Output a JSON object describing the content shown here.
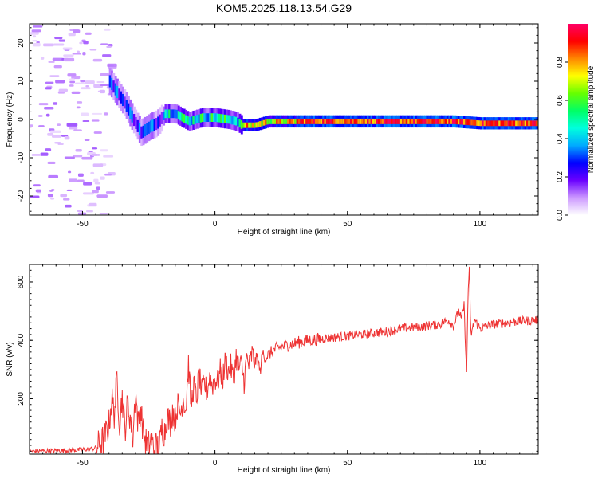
{
  "page": {
    "title": "KOM5.2025.118.13.54.G29"
  },
  "chart_data": [
    {
      "type": "heatmap",
      "title": "KOM5.2025.118.13.54.G29",
      "xlabel": "Height of straight line (km)",
      "ylabel": "Frequency (Hz)",
      "xlim": [
        -70,
        122
      ],
      "ylim": [
        -25,
        25
      ],
      "xticks": [
        "-50",
        "0",
        "50",
        "100"
      ],
      "yticks": [
        "-20",
        "-10",
        "0",
        "10",
        "20"
      ],
      "colorbar": {
        "label": "Normalized spectral amplitude",
        "range": [
          0,
          1
        ],
        "ticks": [
          "0.0",
          "0.2",
          "0.4",
          "0.6",
          "0.8"
        ],
        "colors": [
          "#ffffff",
          "#cc99ff",
          "#6a00ff",
          "#0000ff",
          "#00aaff",
          "#00ffdd",
          "#00ff66",
          "#66ff00",
          "#ffff00",
          "#ff8800",
          "#ff0000",
          "#ff0066"
        ]
      },
      "ridge": {
        "x": [
          -40,
          -37,
          -34,
          -31,
          -28,
          -25,
          -22,
          -19,
          -15,
          -10,
          -5,
          0,
          5,
          8,
          10,
          15,
          20,
          30,
          50,
          70,
          90,
          100,
          110,
          122
        ],
        "y": [
          10,
          7,
          4,
          0,
          -3.5,
          -2,
          -1,
          1.5,
          1.5,
          -0.5,
          0.5,
          0.5,
          0,
          -0.5,
          -1.5,
          -1.5,
          -0.5,
          -0.5,
          -0.5,
          -0.5,
          -0.5,
          -1,
          -1,
          -1
        ]
      }
    },
    {
      "type": "line",
      "xlabel": "Height of straight line (km)",
      "ylabel": "SNR (v/v)",
      "xlim": [
        -70,
        122
      ],
      "ylim": [
        10,
        660
      ],
      "xticks": [
        "-50",
        "0",
        "50",
        "100"
      ],
      "yticks": [
        "200",
        "400",
        "600"
      ],
      "color": "#ee3333",
      "series": [
        {
          "x": [
            -70,
            -60,
            -50,
            -45,
            -42,
            -40,
            -39,
            -38,
            -37,
            -36,
            -35,
            -34,
            -33,
            -32,
            -31,
            -30,
            -29,
            -28,
            -27,
            -26,
            -25,
            -24,
            -23,
            -22,
            -21,
            -20,
            -19,
            -18,
            -17,
            -16,
            -15,
            -14,
            -13,
            -12,
            -11,
            -10,
            -9,
            -8,
            -7,
            -6,
            -5,
            -4,
            -3,
            -2,
            -1,
            0,
            1,
            2,
            3,
            4,
            5,
            6,
            7,
            8,
            9,
            10,
            11,
            12,
            13,
            14,
            15,
            16,
            17,
            18,
            19,
            20,
            22,
            24,
            26,
            28,
            30,
            35,
            40,
            45,
            50,
            55,
            60,
            65,
            70,
            75,
            80,
            85,
            88,
            90,
            92,
            93,
            94,
            95,
            95.5,
            96,
            96.5,
            97,
            98,
            100,
            105,
            110,
            115,
            122
          ],
          "y": [
            20,
            22,
            25,
            30,
            60,
            110,
            200,
            150,
            265,
            120,
            210,
            90,
            180,
            140,
            60,
            230,
            110,
            170,
            80,
            50,
            40,
            60,
            25,
            40,
            30,
            100,
            85,
            145,
            110,
            165,
            130,
            180,
            150,
            205,
            160,
            320,
            175,
            250,
            195,
            285,
            220,
            250,
            225,
            275,
            245,
            270,
            255,
            295,
            265,
            335,
            290,
            310,
            265,
            345,
            305,
            315,
            260,
            340,
            310,
            355,
            320,
            345,
            290,
            360,
            340,
            350,
            365,
            375,
            380,
            385,
            390,
            400,
            405,
            410,
            415,
            420,
            425,
            430,
            440,
            445,
            450,
            455,
            470,
            450,
            500,
            470,
            520,
            280,
            560,
            650,
            420,
            430,
            470,
            440,
            455,
            460,
            465,
            470
          ]
        }
      ]
    }
  ]
}
